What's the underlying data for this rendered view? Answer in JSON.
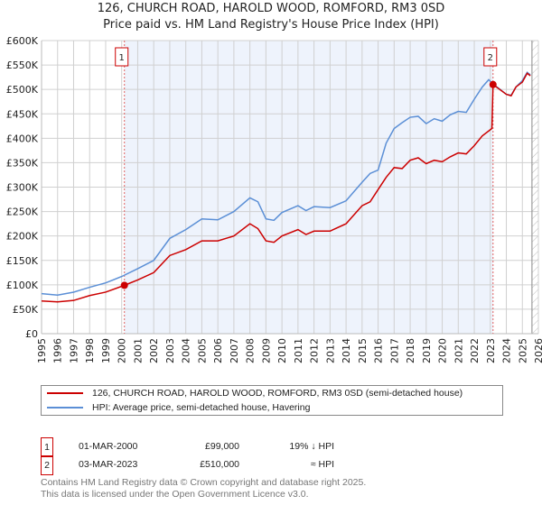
{
  "title": "126, CHURCH ROAD, HAROLD WOOD, ROMFORD, RM3 0SD",
  "subtitle": "Price paid vs. HM Land Registry's House Price Index (HPI)",
  "chart_data": {
    "type": "line",
    "title": "126, CHURCH ROAD, HAROLD WOOD, ROMFORD, RM3 0SD",
    "ylim": [
      0,
      600000
    ],
    "xlim": [
      1995,
      2026
    ],
    "yticks": [
      "£0",
      "£50K",
      "£100K",
      "£150K",
      "£200K",
      "£250K",
      "£300K",
      "£350K",
      "£400K",
      "£450K",
      "£500K",
      "£550K",
      "£600K"
    ],
    "xticks": [
      "1995",
      "1996",
      "1997",
      "1998",
      "1999",
      "2000",
      "2001",
      "2002",
      "2003",
      "2004",
      "2005",
      "2006",
      "2007",
      "2008",
      "2009",
      "2010",
      "2011",
      "2012",
      "2013",
      "2014",
      "2015",
      "2016",
      "2017",
      "2018",
      "2019",
      "2020",
      "2021",
      "2022",
      "2023",
      "2024",
      "2025",
      "2026"
    ],
    "grid": true,
    "colors": {
      "property": "#cc0000",
      "hpi": "#5b8fd6",
      "shade": "#eef3fc"
    },
    "series": [
      {
        "name": "126, CHURCH ROAD, HAROLD WOOD, ROMFORD, RM3 0SD (semi-detached house)",
        "x": [
          1995,
          1996,
          1997,
          1998,
          1999,
          2000.17,
          2001,
          2002,
          2003,
          2004,
          2005,
          2006,
          2007,
          2008,
          2008.5,
          2009,
          2009.5,
          2010,
          2011,
          2011.5,
          2012,
          2013,
          2014,
          2015,
          2015.5,
          2016,
          2016.5,
          2017,
          2017.5,
          2018,
          2018.5,
          2019,
          2019.5,
          2020,
          2020.5,
          2021,
          2021.5,
          2022,
          2022.5,
          2023.1,
          2023.17,
          2023.5,
          2024,
          2024.3,
          2024.6,
          2025,
          2025.3,
          2025.5
        ],
        "y": [
          67000,
          65000,
          68000,
          78000,
          85000,
          99000,
          110000,
          125000,
          160000,
          172000,
          190000,
          190000,
          200000,
          225000,
          215000,
          190000,
          187000,
          200000,
          213000,
          203000,
          210000,
          210000,
          225000,
          262000,
          270000,
          295000,
          320000,
          340000,
          338000,
          355000,
          360000,
          348000,
          355000,
          352000,
          362000,
          370000,
          368000,
          385000,
          405000,
          420000,
          510000,
          502000,
          490000,
          487000,
          505000,
          515000,
          533000,
          528000
        ]
      },
      {
        "name": "HPI: Average price, semi-detached house, Havering",
        "x": [
          1995,
          1996,
          1997,
          1998,
          1999,
          2000,
          2001,
          2002,
          2003,
          2004,
          2005,
          2006,
          2007,
          2008,
          2008.5,
          2009,
          2009.5,
          2010,
          2011,
          2011.5,
          2012,
          2013,
          2014,
          2015,
          2015.5,
          2016,
          2016.5,
          2017,
          2017.5,
          2018,
          2018.5,
          2019,
          2019.5,
          2020,
          2020.5,
          2021,
          2021.5,
          2022,
          2022.5,
          2022.9,
          2023.2,
          2023.5,
          2024,
          2024.3,
          2024.6,
          2025,
          2025.3,
          2025.5
        ],
        "y": [
          82000,
          79000,
          85000,
          95000,
          104000,
          117000,
          133000,
          150000,
          195000,
          213000,
          235000,
          233000,
          250000,
          278000,
          270000,
          235000,
          232000,
          248000,
          262000,
          252000,
          260000,
          258000,
          272000,
          310000,
          328000,
          335000,
          390000,
          420000,
          432000,
          443000,
          445000,
          430000,
          440000,
          435000,
          448000,
          455000,
          453000,
          480000,
          505000,
          520000,
          510000,
          503000,
          490000,
          488000,
          505000,
          518000,
          535000,
          530000
        ]
      }
    ],
    "annotations": [
      {
        "label": "1",
        "x": 2000.17,
        "y": 99000
      },
      {
        "label": "2",
        "x": 2023.17,
        "y": 510000
      }
    ],
    "shaded_range": [
      2000.17,
      2023.17
    ],
    "hatched_from": 2025.6,
    "legend": "below"
  },
  "legend": {
    "property": "126, CHURCH ROAD, HAROLD WOOD, ROMFORD, RM3 0SD (semi-detached house)",
    "hpi": "HPI: Average price, semi-detached house, Havering"
  },
  "sales": [
    {
      "num": "1",
      "date": "01-MAR-2000",
      "price": "£99,000",
      "rel": "19% ↓ HPI"
    },
    {
      "num": "2",
      "date": "03-MAR-2023",
      "price": "£510,000",
      "rel": "≈ HPI"
    }
  ],
  "footer": [
    "Contains HM Land Registry data © Crown copyright and database right 2025.",
    "This data is licensed under the Open Government Licence v3.0."
  ]
}
